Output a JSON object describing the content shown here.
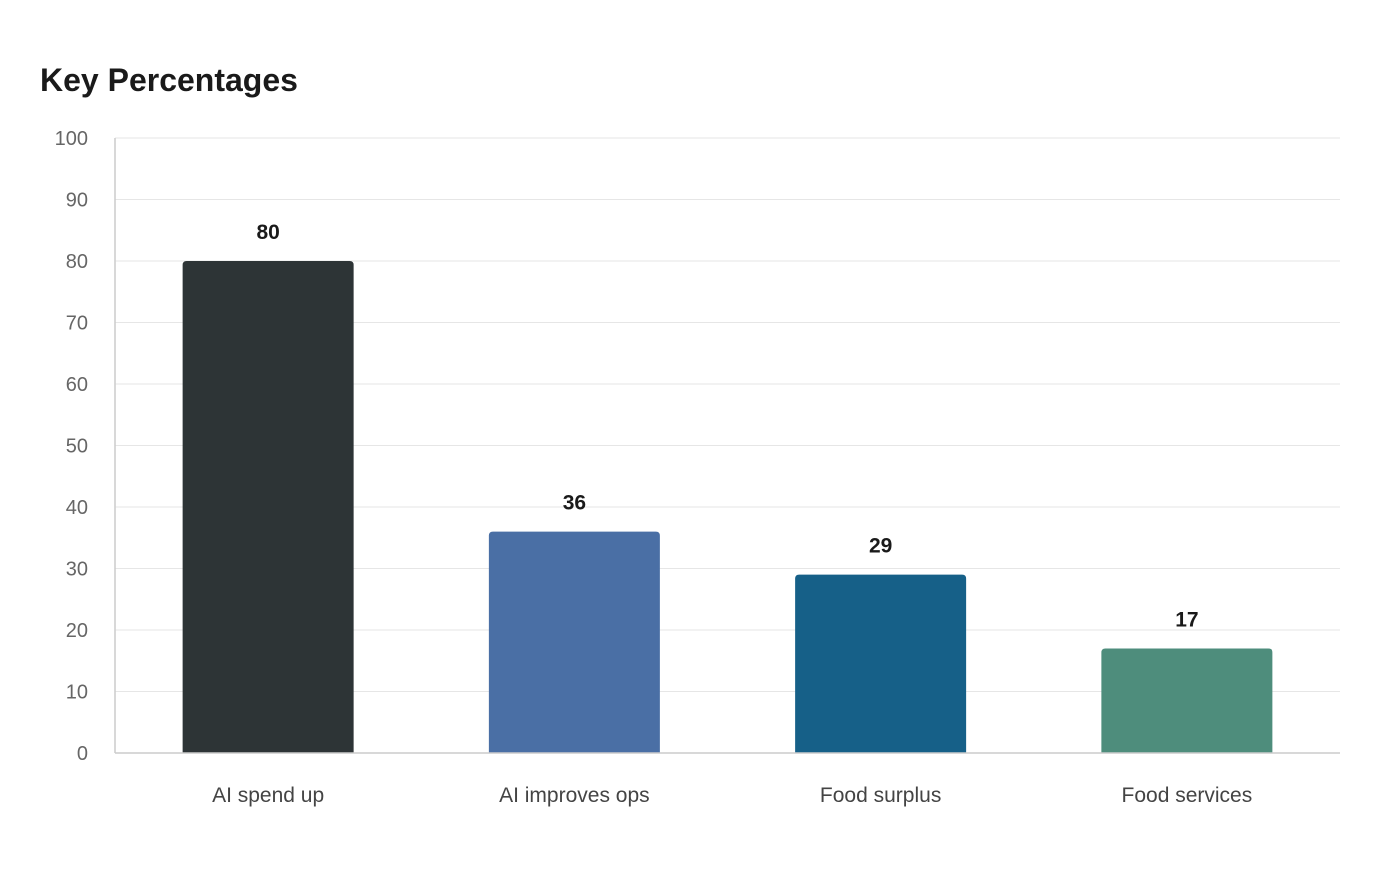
{
  "chart_data": {
    "type": "bar",
    "title": "Key Percentages",
    "xlabel": "",
    "ylabel": "",
    "categories": [
      "AI spend up",
      "AI improves ops",
      "Food surplus",
      "Food services"
    ],
    "values": [
      80,
      36,
      29,
      17
    ],
    "data_labels": [
      "80",
      "36",
      "29",
      "17"
    ],
    "colors": [
      "#2d3436",
      "#4a6fa5",
      "#166088",
      "#4e8d7c"
    ],
    "ylim": [
      0,
      100
    ],
    "yticks": [
      0,
      10,
      20,
      30,
      40,
      50,
      60,
      70,
      80,
      90,
      100
    ],
    "grid": true,
    "legend": "none"
  }
}
